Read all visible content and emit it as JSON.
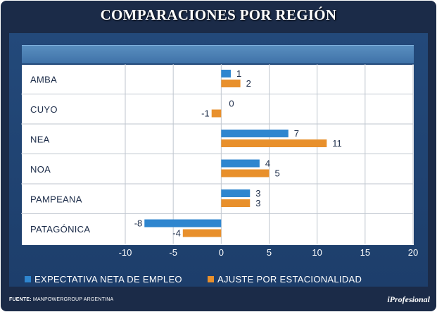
{
  "title": "COMPARACIONES POR REGIÓN",
  "source_label": "FUENTE:",
  "source_text": "MANPOWERGROUP ARGENTINA",
  "brand": "iProfesional",
  "colors": {
    "background": "#1b2b48",
    "series_1": "#2f86cf",
    "series_2": "#e8902c"
  },
  "chart_data": {
    "type": "bar",
    "orientation": "horizontal",
    "categories": [
      "AMBA",
      "CUYO",
      "NEA",
      "NOA",
      "PAMPEANA",
      "PATAGÓNICA"
    ],
    "series": [
      {
        "name": "EXPECTATIVA NETA DE EMPLEO",
        "values": [
          1,
          0,
          7,
          4,
          3,
          -8
        ],
        "data_labels": [
          "1",
          "0",
          "7",
          "4",
          "3",
          "-8"
        ],
        "color": "#2f86cf"
      },
      {
        "name": "AJUSTE POR ESTACIONALIDAD",
        "values": [
          2,
          -1,
          11,
          5,
          3,
          -4
        ],
        "data_labels": [
          "2",
          "-1",
          "11",
          "5",
          "3",
          "-4"
        ],
        "color": "#e8902c"
      }
    ],
    "xlim": [
      -10,
      20
    ],
    "xticks": [
      -10,
      -5,
      0,
      5,
      10,
      15,
      20
    ],
    "tick_labels": [
      "-10",
      "-5",
      "0",
      "5",
      "10",
      "15",
      "20"
    ],
    "legend": "bottom",
    "grid": true
  }
}
